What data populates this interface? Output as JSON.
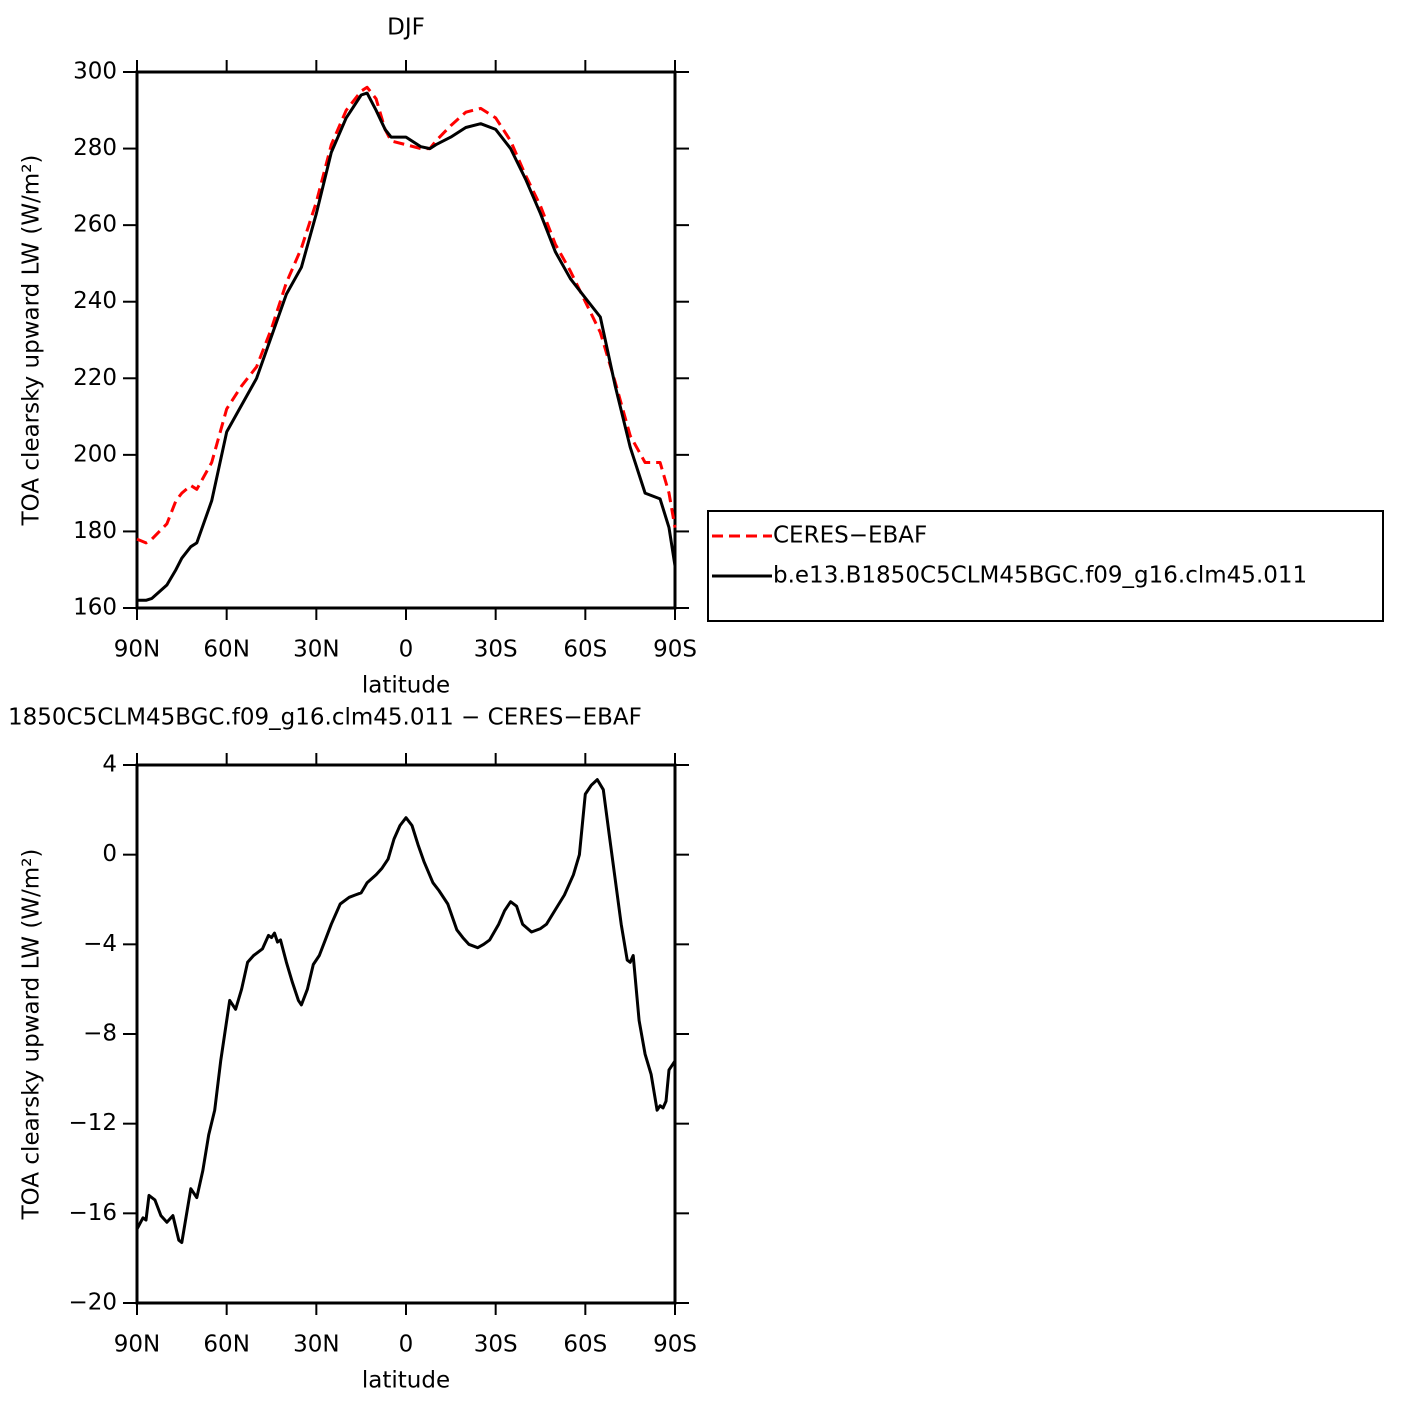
{
  "chart_data": [
    {
      "type": "line",
      "title": "DJF",
      "xlabel": "latitude",
      "ylabel": "TOA clearsky upward LW (W/m²)",
      "x": [
        90,
        87,
        85,
        80,
        77,
        75,
        72,
        70,
        65,
        60,
        55,
        50,
        45,
        40,
        35,
        30,
        25,
        20,
        15,
        13,
        10,
        7,
        5,
        0,
        -5,
        -8,
        -10,
        -15,
        -20,
        -25,
        -30,
        -35,
        -40,
        -45,
        -50,
        -55,
        -60,
        -65,
        -70,
        -75,
        -80,
        -85,
        -88,
        -90
      ],
      "series": [
        {
          "name": "CERES−EBAF",
          "color": "#ff0000",
          "dash": true,
          "values": [
            178,
            177,
            178,
            182,
            188,
            190,
            192,
            191,
            198,
            212,
            218,
            223,
            233,
            245,
            254,
            266,
            281,
            290,
            295,
            296,
            293,
            285,
            282,
            281,
            280,
            280,
            282,
            286,
            289.5,
            290.5,
            288,
            282,
            273,
            265,
            255,
            248,
            240,
            232,
            219,
            205,
            198,
            198,
            190,
            181
          ]
        },
        {
          "name": "b.e13.B1850C5CLM45BGC.f09_g16.clm45.011",
          "color": "#000000",
          "dash": false,
          "values": [
            162,
            162,
            162.5,
            166,
            170,
            173,
            176,
            177,
            188,
            206,
            213,
            220,
            231,
            242,
            249,
            263,
            279,
            288,
            294,
            294.5,
            290,
            285,
            283,
            283,
            280.5,
            280,
            281,
            283,
            285.5,
            286.5,
            285,
            280,
            272,
            263,
            253,
            246,
            241,
            236,
            218,
            202,
            190,
            188.5,
            181,
            171
          ]
        }
      ],
      "xlim": [
        90,
        -90
      ],
      "xticks": [
        {
          "value": 90,
          "label": "90N"
        },
        {
          "value": 60,
          "label": "60N"
        },
        {
          "value": 30,
          "label": "30N"
        },
        0,
        {
          "value": -30,
          "label": "30S"
        },
        {
          "value": -60,
          "label": "60S"
        },
        {
          "value": -90,
          "label": "90S"
        }
      ],
      "ylim": [
        160,
        300
      ],
      "yticks": [
        160,
        180,
        200,
        220,
        240,
        260,
        280,
        300
      ],
      "legend": "right"
    },
    {
      "type": "line",
      "title": "1850C5CLM45BGC.f09_g16.clm45.011 − CERES−EBAF",
      "xlabel": "latitude",
      "ylabel": "TOA clearsky upward LW (W/m²)",
      "x": [
        90,
        88,
        87,
        86,
        84,
        82,
        80,
        78,
        76,
        75,
        72,
        70,
        68,
        66,
        64,
        62,
        60,
        59,
        57,
        55,
        53,
        51,
        48,
        46,
        45,
        44,
        43,
        42,
        40,
        38,
        36,
        35,
        33,
        31,
        29,
        27,
        25,
        22,
        19,
        17,
        15,
        13,
        10,
        8,
        6,
        4,
        2,
        0,
        -2,
        -4,
        -6,
        -9,
        -11,
        -14,
        -17,
        -19,
        -21,
        -24,
        -26,
        -28,
        -31,
        -33,
        -35,
        -37,
        -39,
        -42,
        -45,
        -47,
        -50,
        -53,
        -56,
        -58,
        -60,
        -62,
        -64,
        -66,
        -68,
        -70,
        -72,
        -74,
        -75,
        -76,
        -78,
        -80,
        -82,
        -84,
        -85,
        -86,
        -87,
        -88,
        -90
      ],
      "series": [
        {
          "color": "#000000",
          "dash": false,
          "values": [
            -16.7,
            -16.2,
            -16.3,
            -15.2,
            -15.4,
            -16.1,
            -16.4,
            -16.1,
            -17.2,
            -17.3,
            -14.9,
            -15.3,
            -14.1,
            -12.5,
            -11.4,
            -9.2,
            -7.4,
            -6.5,
            -6.9,
            -6.0,
            -4.8,
            -4.5,
            -4.2,
            -3.6,
            -3.7,
            -3.5,
            -3.9,
            -3.8,
            -4.8,
            -5.7,
            -6.5,
            -6.7,
            -6.0,
            -4.9,
            -4.5,
            -3.8,
            -3.1,
            -2.2,
            -1.9,
            -1.8,
            -1.7,
            -1.25,
            -0.9,
            -0.6,
            -0.2,
            0.7,
            1.3,
            1.65,
            1.3,
            0.45,
            -0.3,
            -1.25,
            -1.6,
            -2.2,
            -3.35,
            -3.7,
            -4.0,
            -4.15,
            -4.0,
            -3.8,
            -3.1,
            -2.5,
            -2.1,
            -2.3,
            -3.1,
            -3.45,
            -3.3,
            -3.1,
            -2.45,
            -1.8,
            -0.9,
            0,
            2.7,
            3.1,
            3.35,
            2.9,
            0.9,
            -1.1,
            -3.1,
            -4.7,
            -4.8,
            -4.5,
            -7.4,
            -8.9,
            -9.8,
            -11.4,
            -11.2,
            -11.3,
            -11.0,
            -9.6,
            -9.2
          ]
        }
      ],
      "xlim": [
        90,
        -90
      ],
      "xticks": [
        {
          "value": 90,
          "label": "90N"
        },
        {
          "value": 60,
          "label": "60N"
        },
        {
          "value": 30,
          "label": "30N"
        },
        0,
        {
          "value": -30,
          "label": "30S"
        },
        {
          "value": -60,
          "label": "60S"
        },
        {
          "value": -90,
          "label": "90S"
        }
      ],
      "ylim": [
        -20,
        4
      ],
      "yticks": [
        {
          "value": -20,
          "label": "−20"
        },
        {
          "value": -16,
          "label": "−16"
        },
        {
          "value": -12,
          "label": "−12"
        },
        {
          "value": -8,
          "label": "−8"
        },
        {
          "value": -4,
          "label": "−4"
        },
        0,
        4
      ]
    }
  ]
}
